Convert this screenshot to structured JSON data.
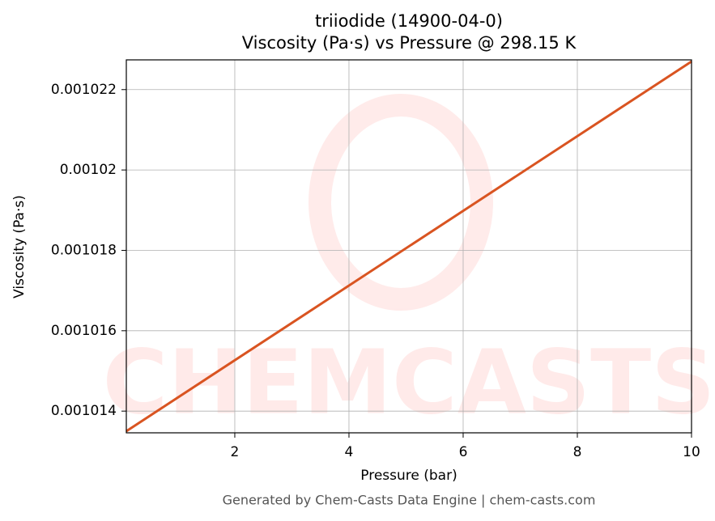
{
  "chart_data": {
    "type": "line",
    "title": "triiodide (14900-04-0)",
    "subtitle": "Viscosity (Pa·s) vs Pressure @ 298.15 K",
    "x_label": "Pressure (bar)",
    "y_label": "Viscosity (Pa·s)",
    "footer": "Generated by Chem-Casts Data Engine | chem-casts.com",
    "x": [
      0.1,
      10
    ],
    "series": [
      {
        "name": "Viscosity",
        "color": "#d95421",
        "values": [
          0.0010135,
          0.0010227
        ]
      }
    ],
    "xlim": [
      0.1,
      10
    ],
    "xticks": [
      2,
      4,
      6,
      8,
      10
    ],
    "ylim": [
      0.00101346,
      0.00102274
    ],
    "yticks": [
      0.001014,
      0.001016,
      0.001018,
      0.00102,
      0.001022
    ],
    "grid": true
  }
}
